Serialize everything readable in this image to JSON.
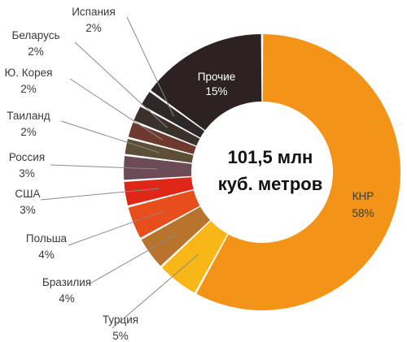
{
  "chart_data": {
    "type": "pie",
    "donut": true,
    "center_text": [
      "101,5 млн",
      "куб. метров"
    ],
    "slices": [
      {
        "label": "КНР",
        "percent": 58,
        "value_label": "58%",
        "color": "#f39317",
        "label_inside": true
      },
      {
        "label": "Турция",
        "percent": 5,
        "value_label": "5%",
        "color": "#f8b617"
      },
      {
        "label": "Бразилия",
        "percent": 4,
        "value_label": "4%",
        "color": "#b8732d"
      },
      {
        "label": "Польша",
        "percent": 4,
        "value_label": "4%",
        "color": "#e84d1c"
      },
      {
        "label": "США",
        "percent": 3,
        "value_label": "3%",
        "color": "#de2716"
      },
      {
        "label": "Россия",
        "percent": 3,
        "value_label": "3%",
        "color": "#6a4b56"
      },
      {
        "label": "Таиланд",
        "percent": 2,
        "value_label": "2%",
        "color": "#5d4e37"
      },
      {
        "label": "Ю. Корея",
        "percent": 2,
        "value_label": "2%",
        "color": "#6e3a30"
      },
      {
        "label": "Беларусь",
        "percent": 2,
        "value_label": "2%",
        "color": "#3a302c"
      },
      {
        "label": "Испания",
        "percent": 2,
        "value_label": "2%",
        "color": "#2e2828"
      },
      {
        "label": "Прочие",
        "percent": 15,
        "value_label": "15%",
        "color": "#2c2222",
        "label_inside": true
      }
    ]
  }
}
